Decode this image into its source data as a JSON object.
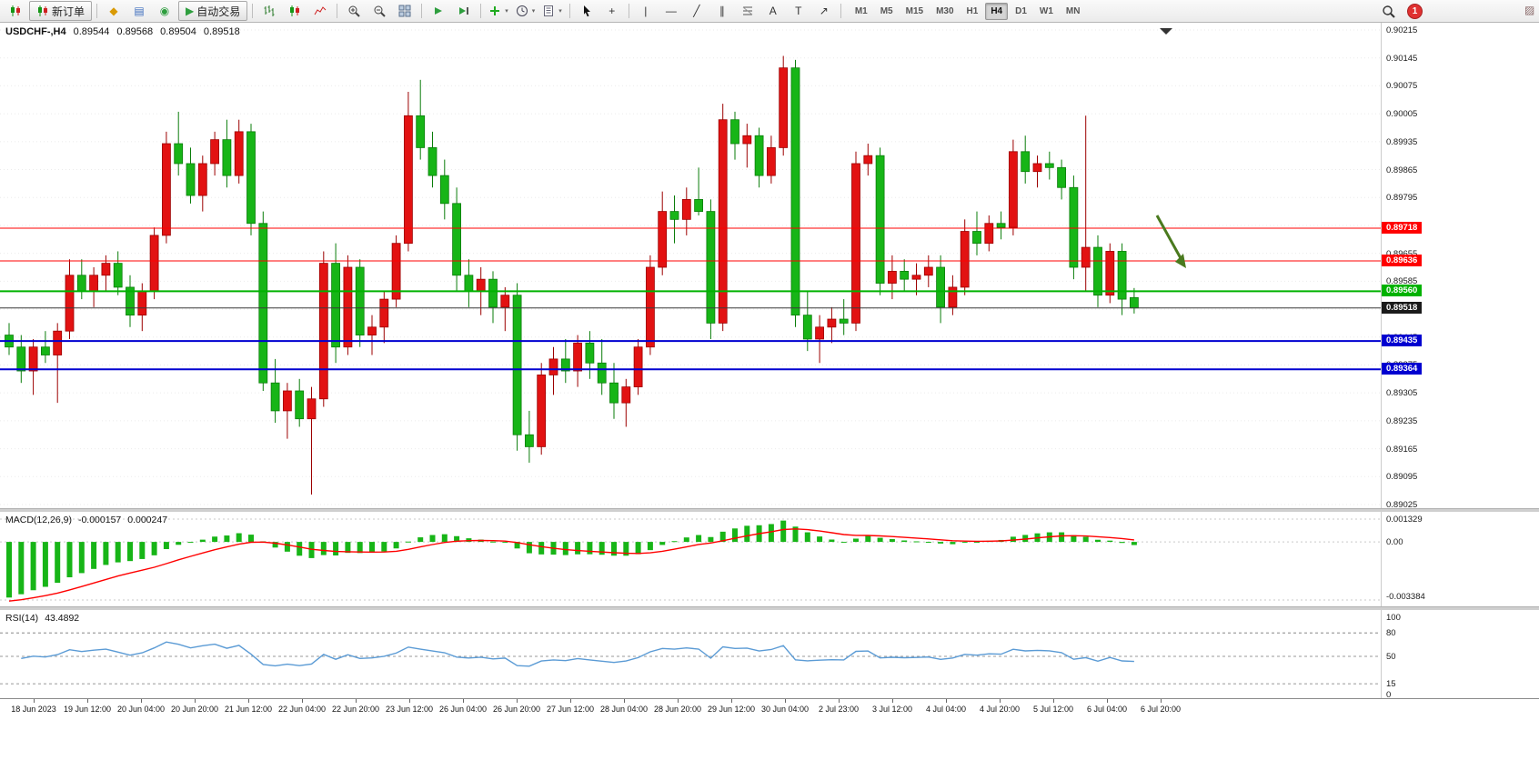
{
  "toolbar": {
    "new_order_label": "新订单",
    "auto_trading_label": "自动交易",
    "timeframes": [
      "M1",
      "M5",
      "M15",
      "M30",
      "H1",
      "H4",
      "D1",
      "W1",
      "MN"
    ],
    "active_timeframe": "H4",
    "notification_count": "1",
    "items": [
      {
        "t": "icon",
        "name": "chart-window-icon",
        "kind": "candles"
      },
      {
        "t": "button",
        "name": "new-order-button",
        "kind": "candles",
        "label_path": "new_order_label",
        "label": "新订单"
      },
      {
        "t": "sep"
      },
      {
        "t": "icon",
        "name": "market-watch-icon",
        "glyph": "◆",
        "color": "#d99a06"
      },
      {
        "t": "icon",
        "name": "data-window-icon",
        "glyph": "▤",
        "color": "#3f6fbf"
      },
      {
        "t": "icon",
        "name": "strategy-tester-icon",
        "glyph": "◉",
        "color": "#2e9e3e"
      },
      {
        "t": "button",
        "name": "auto-trading-button",
        "glyph": "▶",
        "color": "#2e9e3e",
        "label_path": "auto_trading_label",
        "label": "自动交易"
      },
      {
        "t": "sep"
      },
      {
        "t": "icon",
        "name": "bar-chart-button",
        "kind": "bars"
      },
      {
        "t": "icon",
        "name": "candlestick-chart-button",
        "kind": "candles"
      },
      {
        "t": "icon",
        "name": "line-chart-button",
        "kind": "line"
      },
      {
        "t": "sep"
      },
      {
        "t": "icon",
        "name": "zoom-in-button",
        "kind": "zoomin"
      },
      {
        "t": "icon",
        "name": "zoom-out-button",
        "kind": "zoomout"
      },
      {
        "t": "icon",
        "name": "tile-windows-button",
        "kind": "tile"
      },
      {
        "t": "sep"
      },
      {
        "t": "icon",
        "name": "auto-scroll-button",
        "kind": "scroll"
      },
      {
        "t": "icon",
        "name": "chart-shift-button",
        "kind": "shift"
      },
      {
        "t": "sep"
      },
      {
        "t": "icon",
        "name": "indicators-button",
        "kind": "indicator",
        "caret": true
      },
      {
        "t": "icon",
        "name": "periods-button",
        "kind": "clock",
        "caret": true
      },
      {
        "t": "icon",
        "name": "templates-button",
        "kind": "template",
        "caret": true
      },
      {
        "t": "sep"
      },
      {
        "t": "icon",
        "name": "cursor-button",
        "kind": "cursor"
      },
      {
        "t": "icon",
        "name": "crosshair-button",
        "glyph": "+",
        "color": "#333"
      },
      {
        "t": "sep"
      },
      {
        "t": "icon",
        "name": "vertical-line-button",
        "glyph": "|",
        "color": "#333"
      },
      {
        "t": "icon",
        "name": "horizontal-line-button",
        "glyph": "—",
        "color": "#333"
      },
      {
        "t": "icon",
        "name": "trendline-button",
        "glyph": "╱",
        "color": "#333"
      },
      {
        "t": "icon",
        "name": "channel-button",
        "glyph": "∥",
        "color": "#333"
      },
      {
        "t": "icon",
        "name": "fibonacci-button",
        "kind": "fibo"
      },
      {
        "t": "icon",
        "name": "text-button",
        "glyph": "A",
        "color": "#333"
      },
      {
        "t": "icon",
        "name": "text-label-button",
        "glyph": "T",
        "color": "#333"
      },
      {
        "t": "icon",
        "name": "arrows-button",
        "glyph": "↗",
        "color": "#333"
      },
      {
        "t": "sep"
      },
      {
        "t": "timeframes"
      }
    ]
  },
  "chart": {
    "symbol_title": "USDCHF-,H4",
    "ohlc": {
      "open": "0.89544",
      "high": "0.89568",
      "low": "0.89504",
      "close": "0.89518"
    },
    "price_axis": {
      "max": 0.90215,
      "min": 0.89025,
      "step": 0.0007,
      "decimals": 5
    },
    "colors": {
      "bull": "#e21212",
      "bear": "#17b517",
      "bull_stroke": "#9c0000",
      "bear_stroke": "#0a7d0a",
      "grid": "#ebebeb",
      "arrow": "#4a7a1e"
    },
    "hlines": [
      {
        "price": 0.89718,
        "label": "0.89718",
        "type": "resistance-line",
        "color": "#ff0000",
        "badge": "#ff0000",
        "width": 1
      },
      {
        "price": 0.89636,
        "label": "0.89636",
        "type": "resistance-line",
        "color": "#ff0000",
        "badge": "#ff0000",
        "width": 1
      },
      {
        "price": 0.8956,
        "label": "0.89560",
        "type": "support-line",
        "color": "#00b200",
        "badge": "#00b200",
        "width": 2
      },
      {
        "price": 0.89518,
        "label": "0.89518",
        "type": "bid-price-line",
        "color": "#3a3a3a",
        "badge": "#1a1a1a",
        "width": 1
      },
      {
        "price": 0.89435,
        "label": "0.89435",
        "type": "support-line",
        "color": "#0000d0",
        "badge": "#0000d0",
        "width": 2
      },
      {
        "price": 0.89364,
        "label": "0.89364",
        "type": "support-line",
        "color": "#0000d0",
        "badge": "#0000d0",
        "width": 2
      }
    ]
  },
  "macd": {
    "title": "MACD(12,26,9)",
    "value_main": "-0.000157",
    "value_signal": "0.000247",
    "fast": 12,
    "slow": 26,
    "signal": 9,
    "axis": [
      "0.001329",
      "0.00",
      "-0.003384"
    ],
    "axis_values": [
      0.001329,
      0,
      -0.003384
    ],
    "histogram_color": "#17b517",
    "signal_color": "#ff0000"
  },
  "rsi": {
    "title": "RSI(14)",
    "value": "43.4892",
    "period": 14,
    "axis": [
      "100",
      "80",
      "50",
      "15",
      "0"
    ],
    "axis_values": [
      100,
      80,
      50,
      15,
      0
    ],
    "levels": [
      80,
      50,
      15
    ],
    "line_color": "#5b9bd5"
  },
  "time_axis": {
    "labels": [
      "18 Jun 2023",
      "19 Jun 12:00",
      "20 Jun 04:00",
      "20 Jun 20:00",
      "21 Jun 12:00",
      "22 Jun 04:00",
      "22 Jun 20:00",
      "23 Jun 12:00",
      "26 Jun 04:00",
      "26 Jun 20:00",
      "27 Jun 12:00",
      "28 Jun 04:00",
      "28 Jun 20:00",
      "29 Jun 12:00",
      "30 Jun 04:00",
      "2 Jul 23:00",
      "3 Jul 12:00",
      "4 Jul 04:00",
      "4 Jul 20:00",
      "5 Jul 12:00",
      "6 Jul 04:00",
      "6 Jul 20:00"
    ]
  },
  "chart_data": {
    "type": "candlestick",
    "symbol": "USDCHF-",
    "timeframe": "H4",
    "price_range": [
      0.89025,
      0.90215
    ],
    "ohlc_format": [
      "open",
      "high",
      "low",
      "close"
    ],
    "candles": [
      [
        0.8945,
        0.8948,
        0.894,
        0.8942
      ],
      [
        0.8942,
        0.8945,
        0.8933,
        0.8936
      ],
      [
        0.8936,
        0.8944,
        0.893,
        0.8942
      ],
      [
        0.8942,
        0.8946,
        0.8938,
        0.894
      ],
      [
        0.894,
        0.8948,
        0.8928,
        0.8946
      ],
      [
        0.8946,
        0.8964,
        0.8944,
        0.896
      ],
      [
        0.896,
        0.8964,
        0.8954,
        0.8956
      ],
      [
        0.8956,
        0.8962,
        0.8952,
        0.896
      ],
      [
        0.896,
        0.8965,
        0.8956,
        0.8963
      ],
      [
        0.8963,
        0.8966,
        0.8955,
        0.8957
      ],
      [
        0.8957,
        0.896,
        0.8947,
        0.895
      ],
      [
        0.895,
        0.8958,
        0.8946,
        0.8956
      ],
      [
        0.8956,
        0.8972,
        0.8954,
        0.897
      ],
      [
        0.897,
        0.8996,
        0.8968,
        0.8993
      ],
      [
        0.8993,
        0.9001,
        0.8985,
        0.8988
      ],
      [
        0.8988,
        0.8992,
        0.8978,
        0.898
      ],
      [
        0.898,
        0.899,
        0.8976,
        0.8988
      ],
      [
        0.8988,
        0.8996,
        0.8985,
        0.8994
      ],
      [
        0.8994,
        0.8999,
        0.8982,
        0.8985
      ],
      [
        0.8985,
        0.8999,
        0.8983,
        0.8996
      ],
      [
        0.8996,
        0.8998,
        0.897,
        0.8973
      ],
      [
        0.8973,
        0.8976,
        0.8931,
        0.8933
      ],
      [
        0.8933,
        0.8939,
        0.8923,
        0.8926
      ],
      [
        0.8926,
        0.8933,
        0.8919,
        0.8931
      ],
      [
        0.8931,
        0.8934,
        0.8922,
        0.8924
      ],
      [
        0.8924,
        0.8932,
        0.8905,
        0.8929
      ],
      [
        0.8929,
        0.8966,
        0.8927,
        0.8963
      ],
      [
        0.8963,
        0.8968,
        0.8938,
        0.8942
      ],
      [
        0.8942,
        0.8965,
        0.894,
        0.8962
      ],
      [
        0.8962,
        0.8964,
        0.8942,
        0.8945
      ],
      [
        0.8945,
        0.895,
        0.894,
        0.8947
      ],
      [
        0.8947,
        0.8956,
        0.8943,
        0.8954
      ],
      [
        0.8954,
        0.897,
        0.8952,
        0.8968
      ],
      [
        0.8968,
        0.9006,
        0.8966,
        0.9
      ],
      [
        0.9,
        0.9009,
        0.8989,
        0.8992
      ],
      [
        0.8992,
        0.8996,
        0.8982,
        0.8985
      ],
      [
        0.8985,
        0.8989,
        0.8974,
        0.8978
      ],
      [
        0.8978,
        0.8982,
        0.8956,
        0.896
      ],
      [
        0.896,
        0.8964,
        0.8952,
        0.8956
      ],
      [
        0.8956,
        0.8962,
        0.895,
        0.8959
      ],
      [
        0.8959,
        0.8961,
        0.8948,
        0.8952
      ],
      [
        0.8952,
        0.8957,
        0.8946,
        0.8955
      ],
      [
        0.8955,
        0.8958,
        0.8916,
        0.892
      ],
      [
        0.892,
        0.8926,
        0.8913,
        0.8917
      ],
      [
        0.8917,
        0.8938,
        0.8915,
        0.8935
      ],
      [
        0.8935,
        0.8942,
        0.893,
        0.8939
      ],
      [
        0.8939,
        0.8944,
        0.8933,
        0.8936
      ],
      [
        0.8936,
        0.8945,
        0.8932,
        0.8943
      ],
      [
        0.8943,
        0.8946,
        0.8934,
        0.8938
      ],
      [
        0.8938,
        0.8944,
        0.893,
        0.8933
      ],
      [
        0.8933,
        0.8938,
        0.8924,
        0.8928
      ],
      [
        0.8928,
        0.8934,
        0.8922,
        0.8932
      ],
      [
        0.8932,
        0.8944,
        0.893,
        0.8942
      ],
      [
        0.8942,
        0.8965,
        0.894,
        0.8962
      ],
      [
        0.8962,
        0.8981,
        0.896,
        0.8976
      ],
      [
        0.8976,
        0.898,
        0.8968,
        0.8974
      ],
      [
        0.8974,
        0.8982,
        0.897,
        0.8979
      ],
      [
        0.8979,
        0.8987,
        0.8975,
        0.8976
      ],
      [
        0.8976,
        0.8979,
        0.8944,
        0.8948
      ],
      [
        0.8948,
        0.9003,
        0.8946,
        0.8999
      ],
      [
        0.8999,
        0.9001,
        0.8989,
        0.8993
      ],
      [
        0.8993,
        0.8998,
        0.8987,
        0.8995
      ],
      [
        0.8995,
        0.8997,
        0.8982,
        0.8985
      ],
      [
        0.8985,
        0.8995,
        0.8983,
        0.8992
      ],
      [
        0.8992,
        0.9015,
        0.899,
        0.9012
      ],
      [
        0.9012,
        0.9014,
        0.8947,
        0.895
      ],
      [
        0.895,
        0.8956,
        0.8941,
        0.8944
      ],
      [
        0.8944,
        0.895,
        0.8938,
        0.8947
      ],
      [
        0.8947,
        0.8952,
        0.8943,
        0.8949
      ],
      [
        0.8949,
        0.8954,
        0.8945,
        0.8948
      ],
      [
        0.8948,
        0.8991,
        0.8946,
        0.8988
      ],
      [
        0.8988,
        0.8993,
        0.8985,
        0.899
      ],
      [
        0.899,
        0.8992,
        0.8955,
        0.8958
      ],
      [
        0.8958,
        0.8965,
        0.8954,
        0.8961
      ],
      [
        0.8961,
        0.8964,
        0.8956,
        0.8959
      ],
      [
        0.8959,
        0.8963,
        0.8955,
        0.896
      ],
      [
        0.896,
        0.8965,
        0.8957,
        0.8962
      ],
      [
        0.8962,
        0.8965,
        0.8948,
        0.8952
      ],
      [
        0.8952,
        0.896,
        0.895,
        0.8957
      ],
      [
        0.8957,
        0.8974,
        0.8955,
        0.8971
      ],
      [
        0.8971,
        0.8976,
        0.8965,
        0.8968
      ],
      [
        0.8968,
        0.8975,
        0.8966,
        0.8973
      ],
      [
        0.8973,
        0.8976,
        0.8969,
        0.8972
      ],
      [
        0.8972,
        0.8994,
        0.897,
        0.8991
      ],
      [
        0.8991,
        0.8995,
        0.8983,
        0.8986
      ],
      [
        0.8986,
        0.899,
        0.8982,
        0.8988
      ],
      [
        0.8988,
        0.8991,
        0.8984,
        0.8987
      ],
      [
        0.8987,
        0.8989,
        0.8979,
        0.8982
      ],
      [
        0.8982,
        0.8985,
        0.8959,
        0.8962
      ],
      [
        0.8962,
        0.9,
        0.8956,
        0.8967
      ],
      [
        0.8967,
        0.897,
        0.8952,
        0.8955
      ],
      [
        0.8955,
        0.8968,
        0.8953,
        0.8966
      ],
      [
        0.8966,
        0.8968,
        0.895,
        0.8954
      ],
      [
        0.89544,
        0.89568,
        0.89504,
        0.89518
      ]
    ]
  }
}
